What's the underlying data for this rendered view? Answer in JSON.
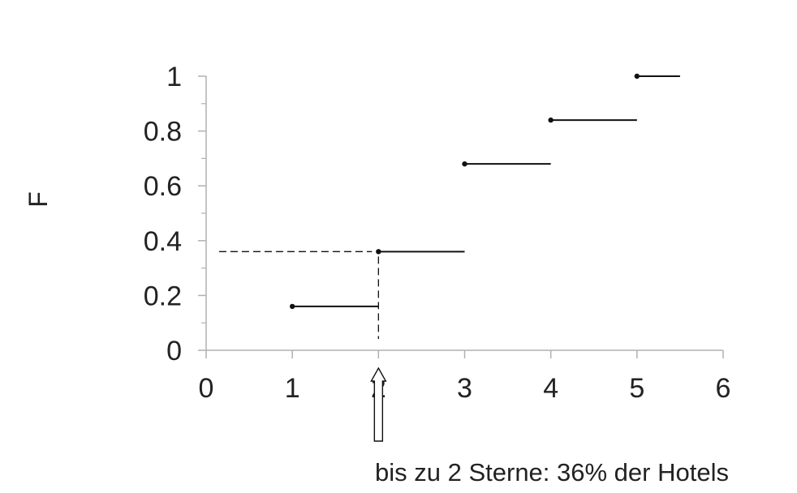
{
  "chart_data": {
    "type": "line",
    "subtype": "step-ecdf",
    "title": "",
    "xlabel": "",
    "ylabel": "F",
    "xlim": [
      0,
      6
    ],
    "ylim": [
      0,
      1
    ],
    "xticks": [
      "0",
      "1",
      "2",
      "3",
      "4",
      "5",
      "6"
    ],
    "yticks": [
      "0",
      "0.2",
      "0.4",
      "0.6",
      "0.8",
      "1"
    ],
    "grid": false,
    "steps": [
      {
        "x_start": 1,
        "x_end": 2,
        "y": 0.16
      },
      {
        "x_start": 2,
        "x_end": 3,
        "y": 0.36
      },
      {
        "x_start": 3,
        "x_end": 4,
        "y": 0.68
      },
      {
        "x_start": 4,
        "x_end": 5,
        "y": 0.84
      },
      {
        "x_start": 5,
        "x_end": 5.5,
        "y": 1.0
      }
    ],
    "reference": {
      "x": 2,
      "y": 0.36
    },
    "annotation": "bis zu 2 Sterne: 36% der Hotels"
  },
  "colors": {
    "axis": "#b0b0b0",
    "line": "#111111",
    "text": "#222222"
  }
}
